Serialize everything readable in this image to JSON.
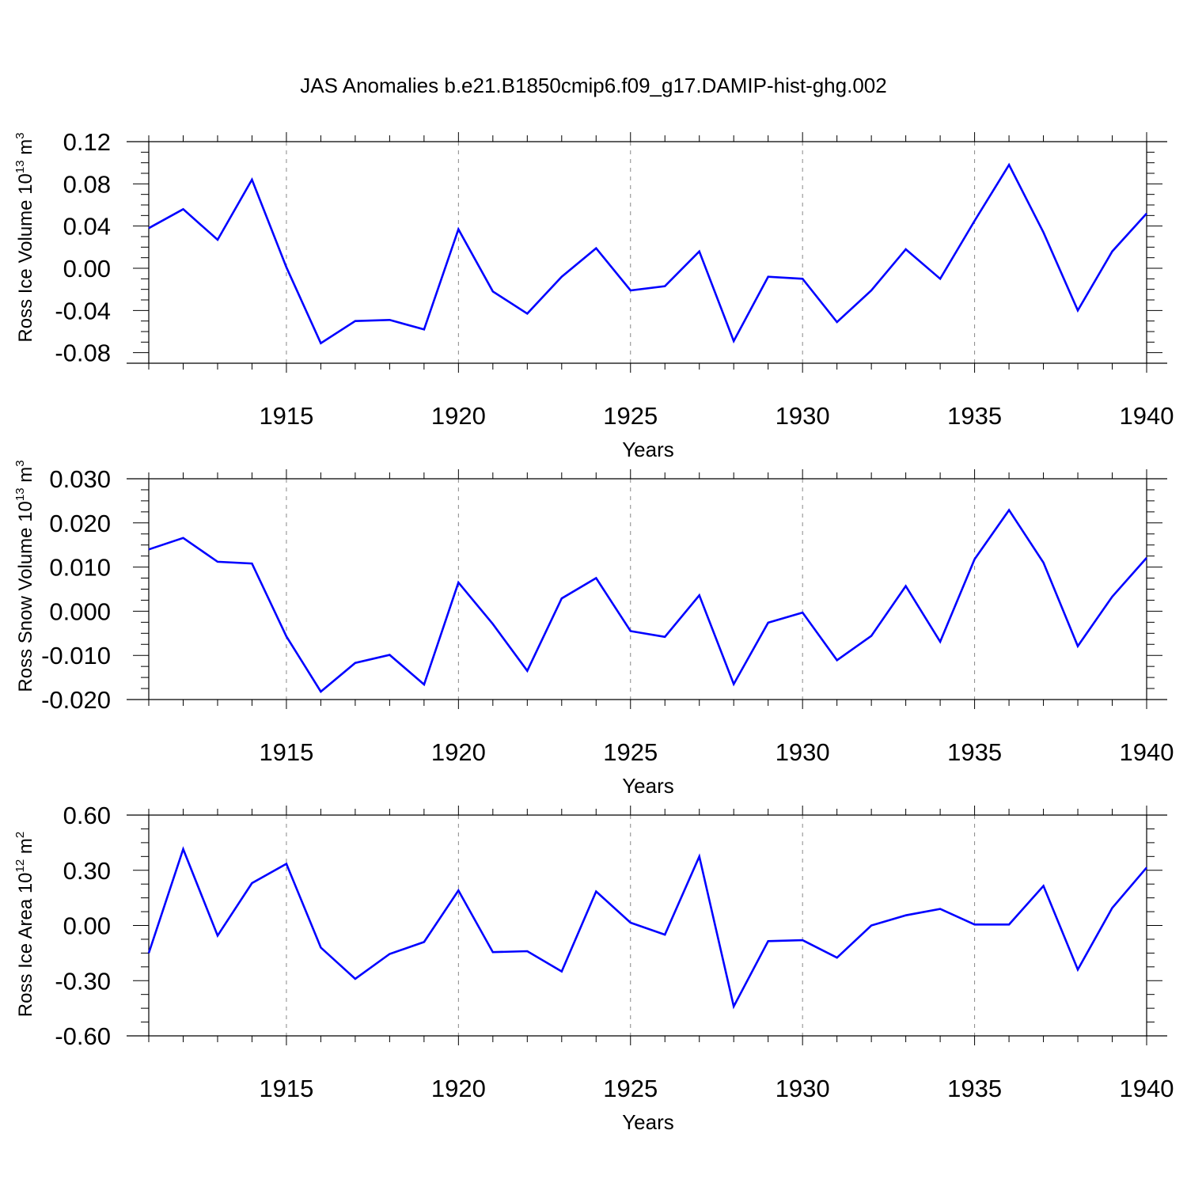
{
  "title": "JAS Anomalies b.e21.B1850cmip6.f09_g17.DAMIP-hist-ghg.002",
  "line_color": "#0000ff",
  "chart_data": [
    {
      "type": "line",
      "ylabel": {
        "base": "Ross Ice Volume 10",
        "exp": "13",
        "unit": " m",
        "unit_exp": "3"
      },
      "xlabel": "Years",
      "xlim": [
        1911,
        1940
      ],
      "ylim": [
        -0.09,
        0.12
      ],
      "yticks": [
        "0.12",
        "0.08",
        "0.04",
        "0.00",
        "-0.04",
        "-0.08"
      ],
      "ytick_values": [
        0.12,
        0.08,
        0.04,
        0.0,
        -0.04,
        -0.08
      ],
      "xticks": [
        "1915",
        "1920",
        "1925",
        "1930",
        "1935",
        "1940"
      ],
      "xtick_values": [
        1915,
        1920,
        1925,
        1930,
        1935,
        1940
      ],
      "gridlines": "vertical dashed at major x ticks",
      "x": [
        1911,
        1912,
        1913,
        1914,
        1915,
        1916,
        1917,
        1918,
        1919,
        1920,
        1921,
        1922,
        1923,
        1924,
        1925,
        1926,
        1927,
        1928,
        1929,
        1930,
        1931,
        1932,
        1933,
        1934,
        1935,
        1936,
        1937,
        1938,
        1939,
        1940
      ],
      "series": [
        {
          "name": "Ross Ice Volume",
          "values": [
            0.038,
            0.056,
            0.027,
            0.084,
            0.001,
            -0.071,
            -0.05,
            -0.049,
            -0.058,
            0.037,
            -0.022,
            -0.043,
            -0.008,
            0.019,
            -0.021,
            -0.017,
            0.016,
            -0.069,
            -0.008,
            -0.01,
            -0.051,
            -0.021,
            0.018,
            -0.01,
            0.045,
            0.098,
            0.034,
            -0.04,
            0.016,
            0.052
          ]
        }
      ]
    },
    {
      "type": "line",
      "ylabel": {
        "base": "Ross Snow Volume 10",
        "exp": "13",
        "unit": " m",
        "unit_exp": "3"
      },
      "xlabel": "Years",
      "xlim": [
        1911,
        1940
      ],
      "ylim": [
        -0.02,
        0.03
      ],
      "yticks": [
        "0.030",
        "0.020",
        "0.010",
        "0.000",
        "-0.010",
        "-0.020"
      ],
      "ytick_values": [
        0.03,
        0.02,
        0.01,
        0.0,
        -0.01,
        -0.02
      ],
      "xticks": [
        "1915",
        "1920",
        "1925",
        "1930",
        "1935",
        "1940"
      ],
      "xtick_values": [
        1915,
        1920,
        1925,
        1930,
        1935,
        1940
      ],
      "gridlines": "vertical dashed at major x ticks",
      "x": [
        1911,
        1912,
        1913,
        1914,
        1915,
        1916,
        1917,
        1918,
        1919,
        1920,
        1921,
        1922,
        1923,
        1924,
        1925,
        1926,
        1927,
        1928,
        1929,
        1930,
        1931,
        1932,
        1933,
        1934,
        1935,
        1936,
        1937,
        1938,
        1939,
        1940
      ],
      "series": [
        {
          "name": "Ross Snow Volume",
          "values": [
            0.014,
            0.0166,
            0.0112,
            0.0108,
            -0.0057,
            -0.0182,
            -0.0117,
            -0.0099,
            -0.0166,
            0.0065,
            -0.0029,
            -0.0135,
            0.0029,
            0.0075,
            -0.0045,
            -0.0058,
            0.0036,
            -0.0165,
            -0.0026,
            -0.0003,
            -0.0111,
            -0.0056,
            0.0057,
            -0.0069,
            0.0118,
            0.0229,
            0.011,
            -0.0079,
            0.0033,
            0.0121
          ]
        }
      ]
    },
    {
      "type": "line",
      "ylabel": {
        "base": "Ross Ice Area 10",
        "exp": "12",
        "unit": " m",
        "unit_exp": "2"
      },
      "xlabel": "Years",
      "xlim": [
        1911,
        1940
      ],
      "ylim": [
        -0.6,
        0.6
      ],
      "yticks": [
        "0.60",
        "0.30",
        "0.00",
        "-0.30",
        "-0.60"
      ],
      "ytick_values": [
        0.6,
        0.3,
        0.0,
        -0.3,
        -0.6
      ],
      "xticks": [
        "1915",
        "1920",
        "1925",
        "1930",
        "1935",
        "1940"
      ],
      "xtick_values": [
        1915,
        1920,
        1925,
        1930,
        1935,
        1940
      ],
      "gridlines": "vertical dashed at major x ticks",
      "x": [
        1911,
        1912,
        1913,
        1914,
        1915,
        1916,
        1917,
        1918,
        1919,
        1920,
        1921,
        1922,
        1923,
        1924,
        1925,
        1926,
        1927,
        1928,
        1929,
        1930,
        1931,
        1932,
        1933,
        1934,
        1935,
        1936,
        1937,
        1938,
        1939,
        1940
      ],
      "series": [
        {
          "name": "Ross Ice Area",
          "values": [
            -0.15,
            0.415,
            -0.055,
            0.23,
            0.335,
            -0.12,
            -0.29,
            -0.155,
            -0.09,
            0.19,
            -0.145,
            -0.14,
            -0.25,
            0.185,
            0.015,
            -0.05,
            0.375,
            -0.44,
            -0.085,
            -0.08,
            -0.175,
            0.0,
            0.055,
            0.09,
            0.005,
            0.005,
            0.215,
            -0.24,
            0.095,
            0.315
          ]
        }
      ]
    }
  ]
}
